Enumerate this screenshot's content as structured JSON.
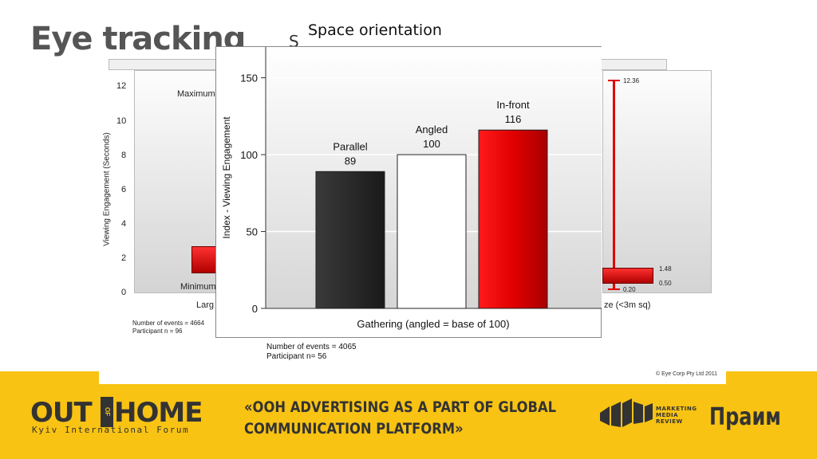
{
  "slide": {
    "title": "Eye tracking",
    "stray_letter": "S",
    "chart_heading": "Space orientation"
  },
  "background_left": {
    "ylabel": "Viewing Engagement (Seconds)",
    "yticks": [
      "12",
      "10",
      "8",
      "6",
      "4",
      "2",
      "0"
    ],
    "max_label": "Maximum",
    "min_label": "Minimum",
    "xlabel_fragment": "Larg",
    "notes": [
      "Number of events = 4664",
      "Participant n = 96"
    ]
  },
  "background_right": {
    "top_value": "12.36",
    "box_top": "1.48",
    "box_mid": "0.50",
    "box_min": "0.20",
    "xlabel_fragment": "ze (<3m sq)"
  },
  "chart_data": {
    "type": "bar",
    "categories": [
      "Parallel",
      "Angled",
      "In-front"
    ],
    "values": [
      89,
      100,
      116
    ],
    "colors": [
      "#2a2a2a",
      "#ffffff",
      "#e00000"
    ],
    "title": "",
    "xlabel": "Gathering (angled = base of 100)",
    "ylabel": "Index - Viewing Engagement",
    "ylim": [
      0,
      170
    ],
    "yticks": [
      0,
      50,
      100,
      150
    ],
    "grid": true,
    "legend": "none"
  },
  "notes": [
    "Number of events = 4065",
    "Participant n= 56"
  ],
  "copyright": "© Eye Corp Pty Ltd 2011",
  "footer": {
    "logo_out": "OUT",
    "logo_of": "OF",
    "logo_home": "HOME",
    "logo_sub": "Kyiv International Forum",
    "slogan_line1": "«OOH ADVERTISING  AS A PART OF GLOBAL",
    "slogan_line2": "COMMUNICATION PLATFORM»",
    "mmr_line1": "MARKETING",
    "mmr_line2": "MEDIA",
    "mmr_line3": "REVIEW",
    "praim": "Праим",
    "colors": {
      "footer_bg": "#f8c313",
      "text": "#333333"
    }
  }
}
